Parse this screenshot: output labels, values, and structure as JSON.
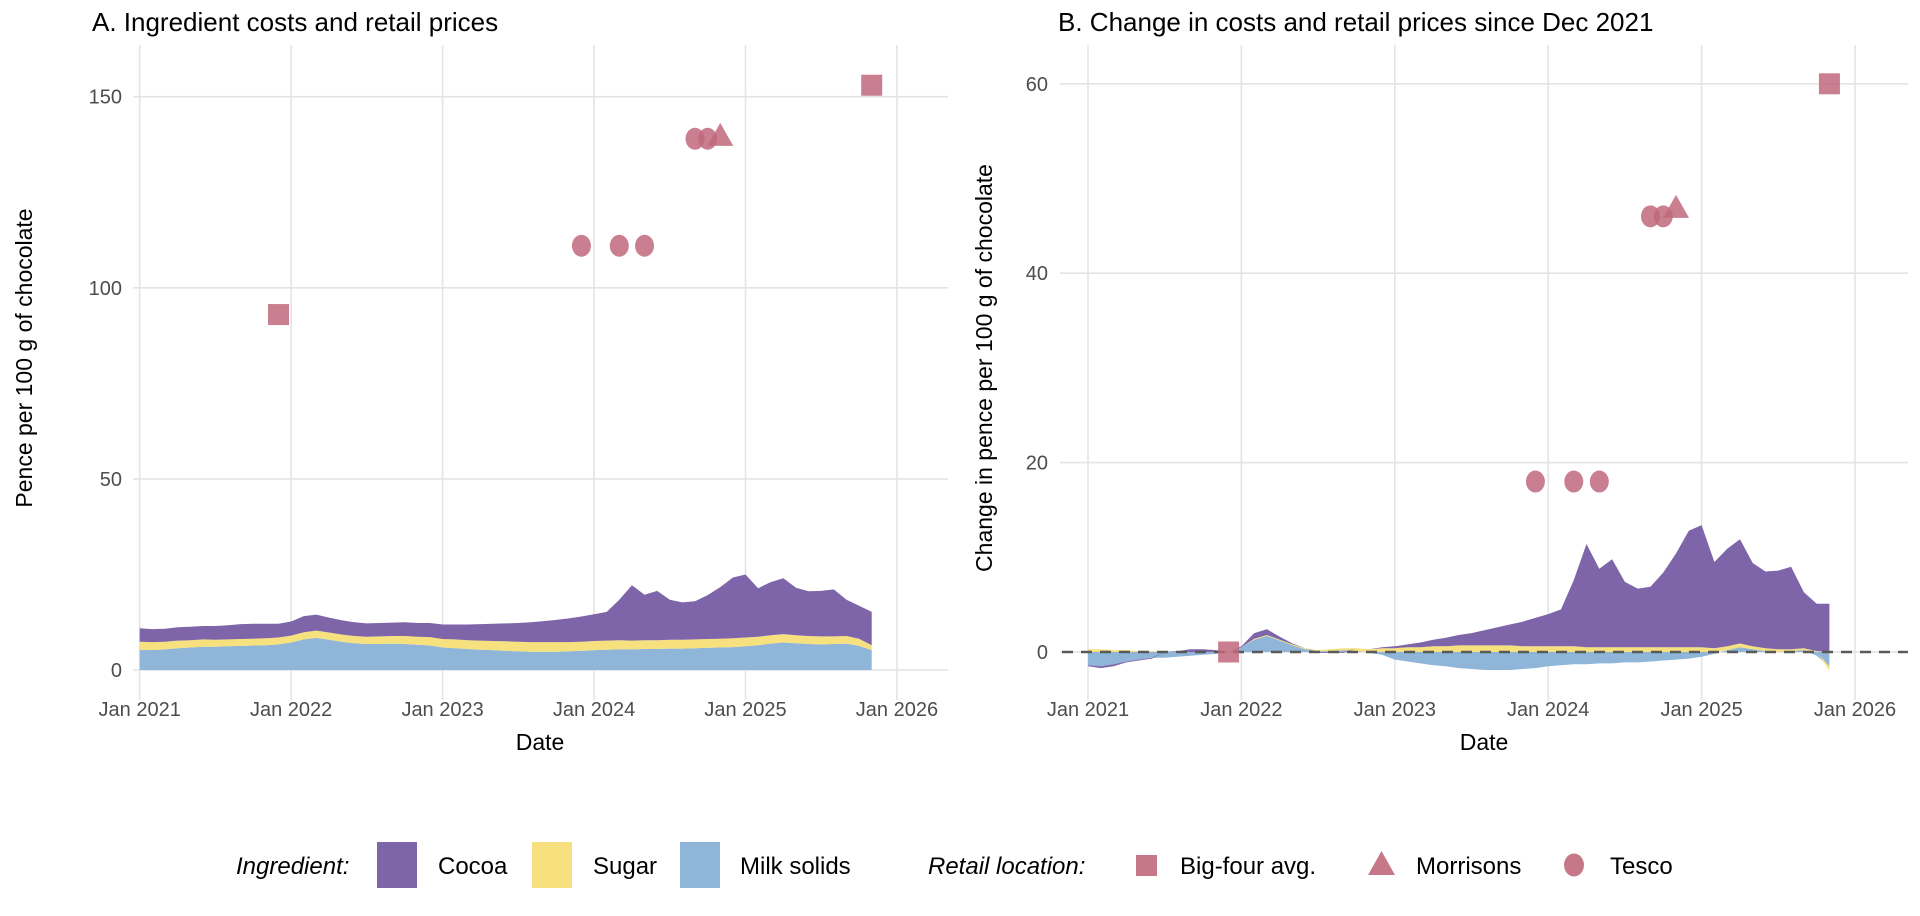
{
  "figure": {
    "background": "#ffffff"
  },
  "colors": {
    "cocoa": "#7E65A9",
    "sugar": "#F6E17E",
    "milk": "#8FB5D8",
    "marker": "#C0697B",
    "grid": "#E4E4E4",
    "axis_text": "#4D4D4D",
    "zero_line": "#5A5A5A"
  },
  "legend": {
    "ingredient_title": "Ingredient:",
    "cocoa_label": "Cocoa",
    "sugar_label": "Sugar",
    "milk_label": "Milk solids",
    "retail_title": "Retail location:",
    "big_four_label": "Big-four avg.",
    "morrisons_label": "Morrisons",
    "tesco_label": "Tesco"
  },
  "chart_data": [
    {
      "id": "panel_a",
      "type": "area",
      "title": "A. Ingredient costs and retail prices",
      "xlabel": "Date",
      "ylabel": "Pence per 100 g of chocolate",
      "x_tick_labels": [
        "Jan 2021",
        "Jan 2022",
        "Jan 2023",
        "Jan 2024",
        "Jan 2025",
        "Jan 2026"
      ],
      "y_ticks": [
        0,
        50,
        100,
        150
      ],
      "ylim": [
        -8,
        163
      ],
      "grid": true,
      "zero_line_dashed": false,
      "months_start": "Jan 2021",
      "area_series": [
        {
          "name": "Milk solids",
          "color_key": "milk",
          "values": [
            5.3,
            5.2,
            5.4,
            5.7,
            5.9,
            6.1,
            6.1,
            6.2,
            6.3,
            6.4,
            6.5,
            6.7,
            7.2,
            8.0,
            8.4,
            7.9,
            7.4,
            7.0,
            6.8,
            6.8,
            6.9,
            6.8,
            6.6,
            6.4,
            5.9,
            5.7,
            5.5,
            5.3,
            5.2,
            5.0,
            4.9,
            4.8,
            4.8,
            4.8,
            4.9,
            5.0,
            5.2,
            5.3,
            5.4,
            5.4,
            5.5,
            5.5,
            5.6,
            5.6,
            5.7,
            5.8,
            5.9,
            6.0,
            6.2,
            6.5,
            6.9,
            7.2,
            7.0,
            6.8,
            6.7,
            6.8,
            6.9,
            6.3,
            5.2
          ]
        },
        {
          "name": "Sugar",
          "color_key": "sugar",
          "values": [
            2.1,
            2.1,
            2.0,
            2.0,
            1.9,
            1.9,
            1.8,
            1.8,
            1.8,
            1.8,
            1.8,
            1.8,
            1.8,
            1.9,
            1.9,
            1.9,
            1.9,
            1.9,
            1.9,
            2.0,
            2.0,
            2.1,
            2.1,
            2.2,
            2.2,
            2.3,
            2.3,
            2.4,
            2.4,
            2.5,
            2.5,
            2.5,
            2.5,
            2.5,
            2.4,
            2.4,
            2.4,
            2.4,
            2.4,
            2.3,
            2.3,
            2.3,
            2.3,
            2.3,
            2.3,
            2.3,
            2.3,
            2.3,
            2.3,
            2.2,
            2.2,
            2.2,
            2.1,
            2.1,
            2.1,
            2.0,
            2.0,
            1.9,
            1.3
          ]
        },
        {
          "name": "Cocoa",
          "color_key": "cocoa",
          "values": [
            3.5,
            3.4,
            3.4,
            3.5,
            3.5,
            3.5,
            3.6,
            3.7,
            3.9,
            3.9,
            3.8,
            3.6,
            3.7,
            4.2,
            4.2,
            3.9,
            3.7,
            3.6,
            3.5,
            3.5,
            3.5,
            3.6,
            3.6,
            3.7,
            3.8,
            3.9,
            4.1,
            4.3,
            4.5,
            4.7,
            4.9,
            5.2,
            5.5,
            5.8,
            6.2,
            6.6,
            7.0,
            7.5,
            10.6,
            14.5,
            11.9,
            12.9,
            10.5,
            9.8,
            10.0,
            11.5,
            13.5,
            15.9,
            16.5,
            12.7,
            13.9,
            14.6,
            12.4,
            11.7,
            11.9,
            12.3,
            9.5,
            8.6,
            8.7
          ]
        }
      ],
      "points": [
        {
          "series": "Big-four avg.",
          "marker": "square",
          "month": 11,
          "date": "Dec 2021",
          "value": 93
        },
        {
          "series": "Big-four avg.",
          "marker": "square",
          "month": 58,
          "date": "Nov 2025",
          "value": 153
        },
        {
          "series": "Tesco",
          "marker": "circle",
          "month": 35,
          "date": "Dec 2023",
          "value": 111
        },
        {
          "series": "Tesco",
          "marker": "circle",
          "month": 38,
          "date": "Mar 2024",
          "value": 111
        },
        {
          "series": "Tesco",
          "marker": "circle",
          "month": 40,
          "date": "May 2024",
          "value": 111
        },
        {
          "series": "Tesco",
          "marker": "circle",
          "month": 44,
          "date": "Sep 2024",
          "value": 139
        },
        {
          "series": "Tesco",
          "marker": "circle",
          "month": 45,
          "date": "Oct 2024",
          "value": 139
        },
        {
          "series": "Morrisons",
          "marker": "triangle",
          "month": 46,
          "date": "Nov 2024",
          "value": 140
        }
      ]
    },
    {
      "id": "panel_b",
      "type": "area",
      "title": "B. Change in costs and retail prices since Dec 2021",
      "xlabel": "Date",
      "ylabel": "Change in pence per 100 g of chocolate",
      "x_tick_labels": [
        "Jan 2021",
        "Jan 2022",
        "Jan 2023",
        "Jan 2024",
        "Jan 2025",
        "Jan 2026"
      ],
      "y_ticks": [
        0,
        20,
        40,
        60
      ],
      "ylim": [
        -5,
        64
      ],
      "grid": true,
      "zero_line_dashed": true,
      "months_start": "Jan 2021",
      "area_series": [
        {
          "name": "Milk solids",
          "color_key": "milk",
          "values": [
            -1.4,
            -1.5,
            -1.3,
            -1.0,
            -0.8,
            -0.6,
            -0.6,
            -0.5,
            -0.4,
            -0.3,
            -0.2,
            0.0,
            0.5,
            1.3,
            1.7,
            1.2,
            0.7,
            0.3,
            0.1,
            0.1,
            0.2,
            0.1,
            -0.1,
            -0.3,
            -0.8,
            -1.0,
            -1.2,
            -1.4,
            -1.5,
            -1.7,
            -1.8,
            -1.9,
            -1.9,
            -1.9,
            -1.8,
            -1.7,
            -1.5,
            -1.4,
            -1.3,
            -1.3,
            -1.2,
            -1.2,
            -1.1,
            -1.1,
            -1.0,
            -0.9,
            -0.8,
            -0.7,
            -0.5,
            -0.2,
            0.2,
            0.5,
            0.3,
            0.1,
            0.0,
            0.1,
            0.2,
            -0.4,
            -1.5
          ]
        },
        {
          "name": "Sugar",
          "color_key": "sugar",
          "values": [
            0.3,
            0.3,
            0.2,
            0.2,
            0.1,
            0.1,
            0.0,
            0.0,
            0.0,
            0.0,
            0.0,
            0.0,
            0.0,
            0.1,
            0.1,
            0.1,
            0.1,
            0.1,
            0.1,
            0.2,
            0.2,
            0.3,
            0.3,
            0.4,
            0.4,
            0.5,
            0.5,
            0.6,
            0.6,
            0.7,
            0.7,
            0.7,
            0.7,
            0.7,
            0.6,
            0.6,
            0.6,
            0.6,
            0.6,
            0.5,
            0.5,
            0.5,
            0.5,
            0.5,
            0.5,
            0.5,
            0.5,
            0.5,
            0.5,
            0.4,
            0.4,
            0.4,
            0.3,
            0.3,
            0.3,
            0.2,
            0.2,
            0.1,
            -0.5
          ]
        },
        {
          "name": "Cocoa",
          "color_key": "cocoa",
          "values": [
            -0.1,
            -0.2,
            -0.2,
            -0.1,
            -0.1,
            -0.1,
            0.0,
            0.1,
            0.3,
            0.3,
            0.2,
            0.0,
            0.1,
            0.6,
            0.6,
            0.3,
            0.1,
            0.0,
            -0.1,
            -0.1,
            -0.1,
            0.0,
            0.0,
            0.1,
            0.2,
            0.3,
            0.5,
            0.7,
            0.9,
            1.1,
            1.3,
            1.6,
            1.9,
            2.2,
            2.6,
            3.0,
            3.4,
            3.9,
            7.0,
            10.9,
            8.3,
            9.3,
            6.9,
            6.2,
            6.4,
            7.9,
            9.9,
            12.3,
            12.9,
            9.1,
            10.3,
            11.0,
            8.8,
            8.1,
            8.3,
            8.7,
            5.9,
            5.0,
            5.1
          ]
        }
      ],
      "points": [
        {
          "series": "Big-four avg.",
          "marker": "square",
          "month": 11,
          "date": "Dec 2021",
          "value": 0
        },
        {
          "series": "Big-four avg.",
          "marker": "square",
          "month": 58,
          "date": "Nov 2025",
          "value": 60
        },
        {
          "series": "Tesco",
          "marker": "circle",
          "month": 35,
          "date": "Dec 2023",
          "value": 18
        },
        {
          "series": "Tesco",
          "marker": "circle",
          "month": 38,
          "date": "Mar 2024",
          "value": 18
        },
        {
          "series": "Tesco",
          "marker": "circle",
          "month": 40,
          "date": "May 2024",
          "value": 18
        },
        {
          "series": "Tesco",
          "marker": "circle",
          "month": 44,
          "date": "Sep 2024",
          "value": 46
        },
        {
          "series": "Tesco",
          "marker": "circle",
          "month": 45,
          "date": "Oct 2024",
          "value": 46
        },
        {
          "series": "Morrisons",
          "marker": "triangle",
          "month": 46,
          "date": "Nov 2024",
          "value": 47
        }
      ]
    }
  ]
}
